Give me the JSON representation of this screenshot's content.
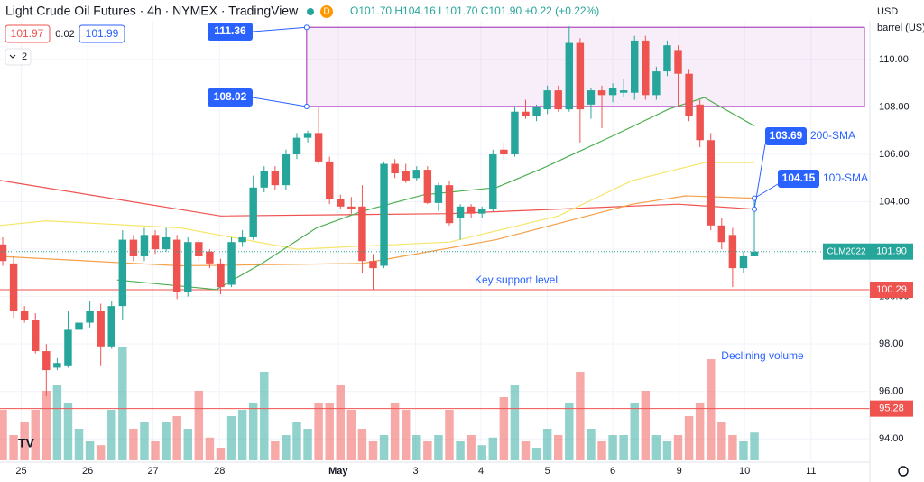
{
  "chart_data": {
    "type": "candlestick",
    "title": "Light Crude Oil Futures · 4h · NYMEX · TradingView",
    "interval_badge": "D",
    "ohlc_text": "O101.70 H104.16 L101.70 C101.90 +0.22 (+0.22%)",
    "bid": "101.97",
    "spread": "0.02",
    "ask": "101.99",
    "indicator_count": "2",
    "currency": "USD",
    "unit": "barrel (US)",
    "up_color": "#26a69a",
    "down_color": "#ef5350",
    "xlim": [
      -0.25,
      79.6
    ],
    "ylim": [
      93.02,
      112.51
    ],
    "xticks": [
      {
        "value": 1.7,
        "label": "25"
      },
      {
        "value": 7.8,
        "label": "26"
      },
      {
        "value": 13.8,
        "label": "27"
      },
      {
        "value": 19.9,
        "label": "28"
      },
      {
        "value": 30.8,
        "label": "May"
      },
      {
        "value": 37.9,
        "label": "3"
      },
      {
        "value": 43.9,
        "label": "4"
      },
      {
        "value": 50,
        "label": "5"
      },
      {
        "value": 56,
        "label": "6"
      },
      {
        "value": 62.1,
        "label": "9"
      },
      {
        "value": 68.1,
        "label": "10"
      },
      {
        "value": 74.2,
        "label": "11"
      }
    ],
    "yticks": [
      {
        "value": 94,
        "label": "94.00"
      },
      {
        "value": 96,
        "label": "96.00"
      },
      {
        "value": 98,
        "label": "98.00"
      },
      {
        "value": 100,
        "label": "100.00"
      },
      {
        "value": 102,
        "label": "102.00"
      },
      {
        "value": 104,
        "label": "104.00"
      },
      {
        "value": 106,
        "label": "106.00"
      },
      {
        "value": 108,
        "label": "108.00"
      },
      {
        "value": 110,
        "label": "110.00"
      }
    ],
    "x": [
      0,
      1,
      2,
      3,
      4,
      5,
      6,
      7,
      8,
      9,
      10,
      11,
      12,
      13,
      14,
      15,
      16,
      17,
      18,
      19,
      20,
      21,
      22,
      23,
      24,
      25,
      26,
      27,
      28,
      29,
      30,
      31,
      32,
      33,
      34,
      35,
      36,
      37,
      38,
      39,
      40,
      41,
      42,
      43,
      44,
      45,
      46,
      47,
      48,
      49,
      50,
      51,
      52,
      53,
      54,
      55,
      56,
      57,
      58,
      59,
      60,
      61,
      62,
      63,
      64,
      65,
      66,
      67,
      68,
      69
    ],
    "open": [
      102.2,
      101.4,
      99.4,
      99.0,
      97.7,
      97.0,
      97.1,
      98.6,
      98.9,
      99.4,
      97.9,
      99.6,
      102.4,
      101.7,
      102.6,
      102.0,
      102.4,
      100.2,
      102.3,
      101.9,
      101.4,
      100.5,
      102.3,
      102.5,
      104.6,
      105.3,
      104.7,
      106.0,
      106.7,
      106.9,
      105.7,
      104.1,
      103.8,
      103.8,
      101.5,
      101.3,
      105.6,
      105.3,
      105.0,
      105.35,
      103.95,
      104.7,
      103.3,
      103.8,
      103.5,
      103.7,
      106.2,
      106.0,
      107.8,
      107.6,
      107.9,
      108.7,
      107.9,
      110.7,
      108.1,
      108.7,
      108.5,
      108.6,
      108.6,
      110.8,
      108.5,
      109.5,
      110.4,
      109.4,
      108.1,
      106.6,
      103.0,
      102.6,
      101.2,
      101.7
    ],
    "high": [
      102.5,
      101.7,
      99.6,
      99.3,
      98.0,
      97.4,
      99.4,
      99.2,
      99.8,
      99.7,
      99.8,
      102.8,
      102.6,
      102.9,
      102.8,
      102.9,
      102.6,
      102.5,
      102.4,
      102.0,
      101.6,
      102.5,
      102.8,
      105.1,
      105.5,
      105.5,
      106.2,
      106.9,
      107.0,
      108.0,
      105.9,
      104.3,
      104.2,
      104.7,
      101.8,
      105.7,
      105.8,
      105.6,
      105.5,
      105.5,
      104.8,
      104.9,
      103.9,
      103.9,
      103.8,
      106.2,
      106.5,
      108.0,
      108.3,
      108.1,
      108.9,
      108.9,
      111.4,
      110.9,
      108.8,
      108.9,
      109.0,
      109.2,
      111.0,
      111.0,
      109.7,
      110.8,
      110.6,
      109.6,
      108.3,
      106.9,
      103.3,
      102.9,
      101.9,
      104.16
    ],
    "low": [
      101.3,
      99.1,
      98.9,
      97.6,
      95.8,
      96.9,
      97.0,
      98.4,
      98.7,
      97.1,
      97.8,
      99.0,
      101.5,
      101.5,
      101.8,
      101.9,
      99.9,
      100.0,
      101.5,
      101.2,
      100.1,
      100.4,
      102.1,
      102.4,
      104.4,
      104.5,
      104.5,
      105.8,
      106.5,
      105.6,
      103.9,
      103.7,
      103.5,
      101.0,
      100.3,
      101.2,
      105.0,
      104.8,
      104.9,
      103.9,
      103.6,
      103.0,
      102.4,
      103.3,
      103.3,
      103.6,
      105.8,
      105.9,
      107.5,
      107.4,
      107.7,
      107.8,
      107.8,
      106.5,
      107.5,
      107.1,
      108.2,
      108.4,
      108.3,
      108.3,
      108.3,
      109.3,
      108.0,
      107.4,
      106.3,
      102.8,
      102.0,
      100.4,
      101.0,
      101.7
    ],
    "close": [
      101.5,
      99.4,
      99.0,
      97.7,
      96.9,
      97.2,
      98.6,
      98.9,
      99.4,
      97.9,
      99.6,
      102.4,
      101.7,
      102.6,
      102.0,
      102.5,
      100.2,
      102.3,
      101.7,
      101.4,
      100.4,
      102.3,
      102.5,
      104.6,
      105.3,
      104.7,
      106.0,
      106.7,
      106.9,
      105.7,
      104.1,
      103.8,
      103.7,
      101.5,
      101.2,
      105.6,
      105.2,
      104.9,
      105.35,
      103.95,
      104.7,
      103.1,
      103.8,
      103.5,
      103.7,
      106.0,
      106.0,
      107.8,
      107.6,
      108.0,
      108.7,
      107.9,
      110.7,
      107.9,
      108.7,
      108.5,
      108.8,
      108.7,
      110.8,
      108.5,
      109.5,
      110.6,
      109.4,
      107.6,
      106.6,
      103.0,
      102.3,
      101.2,
      101.7,
      101.9
    ],
    "volume_lim": [
      0,
      100
    ],
    "volume": [
      40,
      20,
      30,
      40,
      55,
      60,
      45,
      25,
      15,
      12,
      40,
      90,
      25,
      30,
      15,
      30,
      35,
      25,
      55,
      18,
      10,
      35,
      40,
      45,
      70,
      15,
      20,
      30,
      25,
      45,
      45,
      60,
      40,
      25,
      15,
      20,
      45,
      40,
      20,
      15,
      20,
      40,
      15,
      20,
      12,
      18,
      50,
      60,
      15,
      10,
      25,
      20,
      45,
      70,
      25,
      15,
      20,
      20,
      45,
      55,
      20,
      15,
      20,
      35,
      45,
      80,
      30,
      20,
      15,
      22
    ],
    "series": [
      {
        "name": "200-SMA",
        "color": "#ef5350",
        "x": [
          -0.25,
          20,
          41,
          62,
          69
        ],
        "values": [
          104.9,
          103.4,
          103.5,
          103.9,
          103.69
        ]
      },
      {
        "name": "100-SMA",
        "color": "#f5a04a",
        "x": [
          -0.25,
          16.3,
          33,
          45.3,
          57.8,
          62.7,
          69
        ],
        "values": [
          101.7,
          101.3,
          101.4,
          102.4,
          103.9,
          104.25,
          104.15
        ]
      },
      {
        "color": "#f5e66a",
        "x": [
          -0.25,
          4,
          16.3,
          27,
          41,
          51,
          57.8,
          64.4,
          69
        ],
        "values": [
          103.0,
          103.2,
          102.9,
          102.0,
          102.3,
          103.4,
          104.9,
          105.65,
          105.65
        ]
      },
      {
        "color": "#4caf50",
        "x": [
          10.5,
          19.6,
          23.8,
          28.8,
          33,
          38.7,
          45.3,
          49.5,
          56.1,
          61.1,
          64.4,
          69
        ],
        "values": [
          100.7,
          100.3,
          101.4,
          102.9,
          103.6,
          104.3,
          104.6,
          105.4,
          106.8,
          107.9,
          108.4,
          107.2
        ]
      }
    ],
    "range_box": {
      "x": [
        27.9,
        79.1
      ],
      "top": 111.36,
      "bottom": 108.02,
      "color": "#9c27b0"
    },
    "hlines": [
      {
        "value": 100.29,
        "color": "#ef5350",
        "label_text": "Key support level"
      },
      {
        "value": 95.28,
        "color": "#ef5350"
      }
    ],
    "last_price": {
      "name": "CLM2022",
      "value": 101.9,
      "label": "101.90"
    },
    "annotations": [
      "Key support level",
      "Declining volume"
    ]
  }
}
